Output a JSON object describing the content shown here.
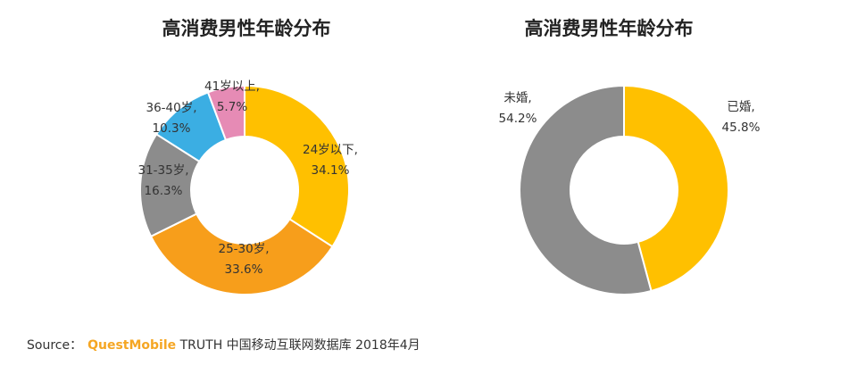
{
  "chart_data": [
    {
      "type": "pie",
      "variant": "donut",
      "title": "高消费男性年龄分布",
      "slices": [
        {
          "name": "24岁以下",
          "value": 34.1,
          "label_line1": "24岁以下,",
          "label_line2": "34.1%",
          "color": "#FFC000"
        },
        {
          "name": "25-30岁",
          "value": 33.6,
          "label_line1": "25-30岁,",
          "label_line2": "33.6%",
          "color": "#F79E1B"
        },
        {
          "name": "31-35岁",
          "value": 16.3,
          "label_line1": "31-35岁,",
          "label_line2": "16.3%",
          "color": "#8C8C8C"
        },
        {
          "name": "36-40岁",
          "value": 10.3,
          "label_line1": "36-40岁,",
          "label_line2": "10.3%",
          "color": "#3BAEE3"
        },
        {
          "name": "41岁以上",
          "value": 5.7,
          "label_line1": "41岁以上,",
          "label_line2": "5.7%",
          "color": "#E68BB5"
        }
      ]
    },
    {
      "type": "pie",
      "variant": "donut",
      "title": "高消费男性年龄分布",
      "slices": [
        {
          "name": "已婚",
          "value": 45.8,
          "label_line1": "已婚,",
          "label_line2": "45.8%",
          "color": "#FFC000"
        },
        {
          "name": "未婚",
          "value": 54.2,
          "label_line1": "未婚,",
          "label_line2": "54.2%",
          "color": "#8C8C8C"
        }
      ]
    }
  ],
  "source": {
    "prefix": "Source：",
    "brand": "QuestMobile",
    "text": "TRUTH 中国移动互联网数据库 2018年4月"
  }
}
